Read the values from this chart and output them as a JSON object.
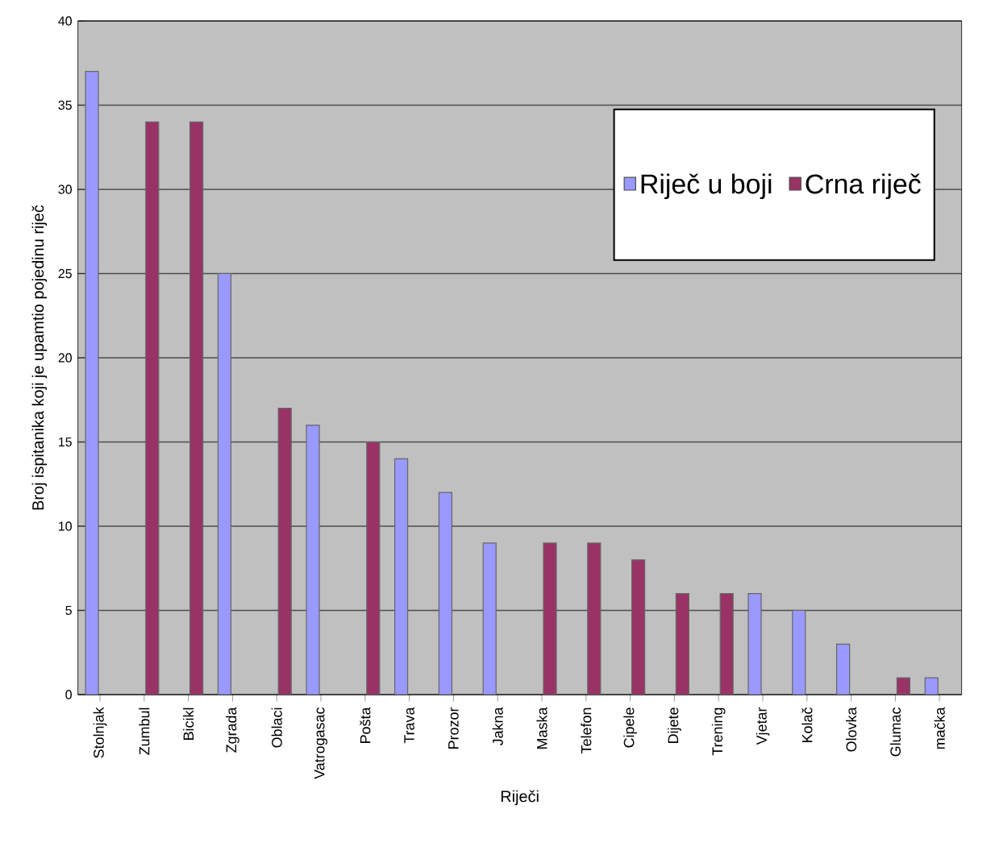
{
  "chart_data": {
    "type": "bar",
    "xlabel": "Riječi",
    "ylabel": "Broj ispitanika koji je upamtio pojedinu riječ",
    "categories": [
      "Stolnjak",
      "Zumbul",
      "Bicikl",
      "Zgrada",
      "Oblaci",
      "Vatrogasac",
      "Pošta",
      "Trava",
      "Prozor",
      "Jakna",
      "Maska",
      "Telefon",
      "Cipele",
      "Dijete",
      "Trening",
      "Vjetar",
      "Kolač",
      "Olovka",
      "Glumac",
      "mačka"
    ],
    "series": [
      {
        "name": "Riječ u boji",
        "color": "#9999ff",
        "values": [
          37,
          null,
          null,
          25,
          null,
          16,
          null,
          14,
          12,
          9,
          null,
          null,
          null,
          null,
          null,
          6,
          5,
          3,
          null,
          1
        ]
      },
      {
        "name": "Crna riječ",
        "color": "#993366",
        "values": [
          null,
          34,
          34,
          null,
          17,
          null,
          15,
          null,
          null,
          null,
          9,
          9,
          8,
          6,
          6,
          null,
          null,
          null,
          1,
          null
        ]
      }
    ],
    "ylim": [
      0,
      40
    ],
    "yticks": [
      0,
      5,
      10,
      15,
      20,
      25,
      30,
      35,
      40
    ],
    "grid": "y",
    "legend": "top right"
  }
}
